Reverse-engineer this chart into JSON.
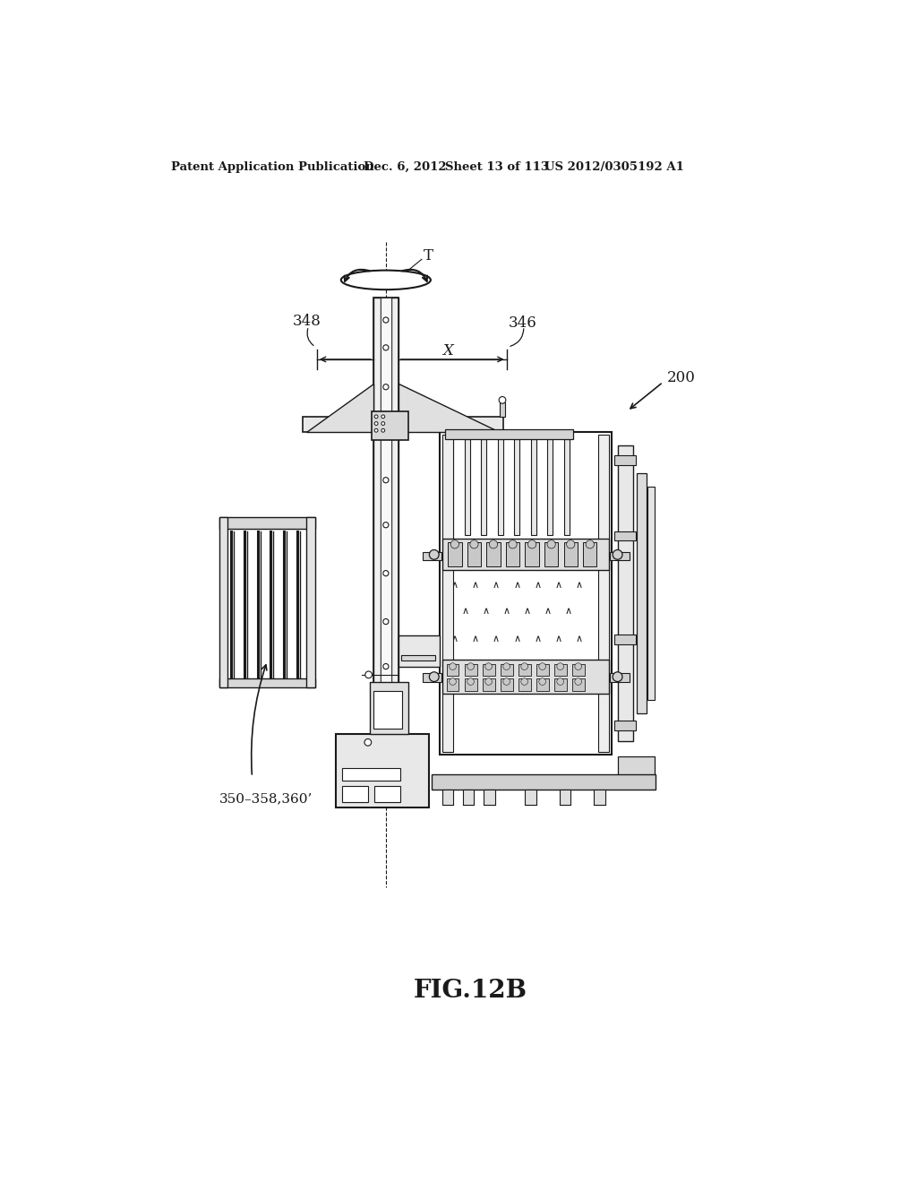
{
  "bg_color": "#ffffff",
  "line_color": "#1a1a1a",
  "header_text": "Patent Application Publication",
  "header_date": "Dec. 6, 2012",
  "header_sheet": "Sheet 13 of 113",
  "header_patent": "US 2012/0305192 A1",
  "fig_label": "FIG.12B",
  "label_200": "200",
  "label_348": "348",
  "label_346": "346",
  "label_T": "T",
  "label_X": "X",
  "label_350": "350–358,360’"
}
